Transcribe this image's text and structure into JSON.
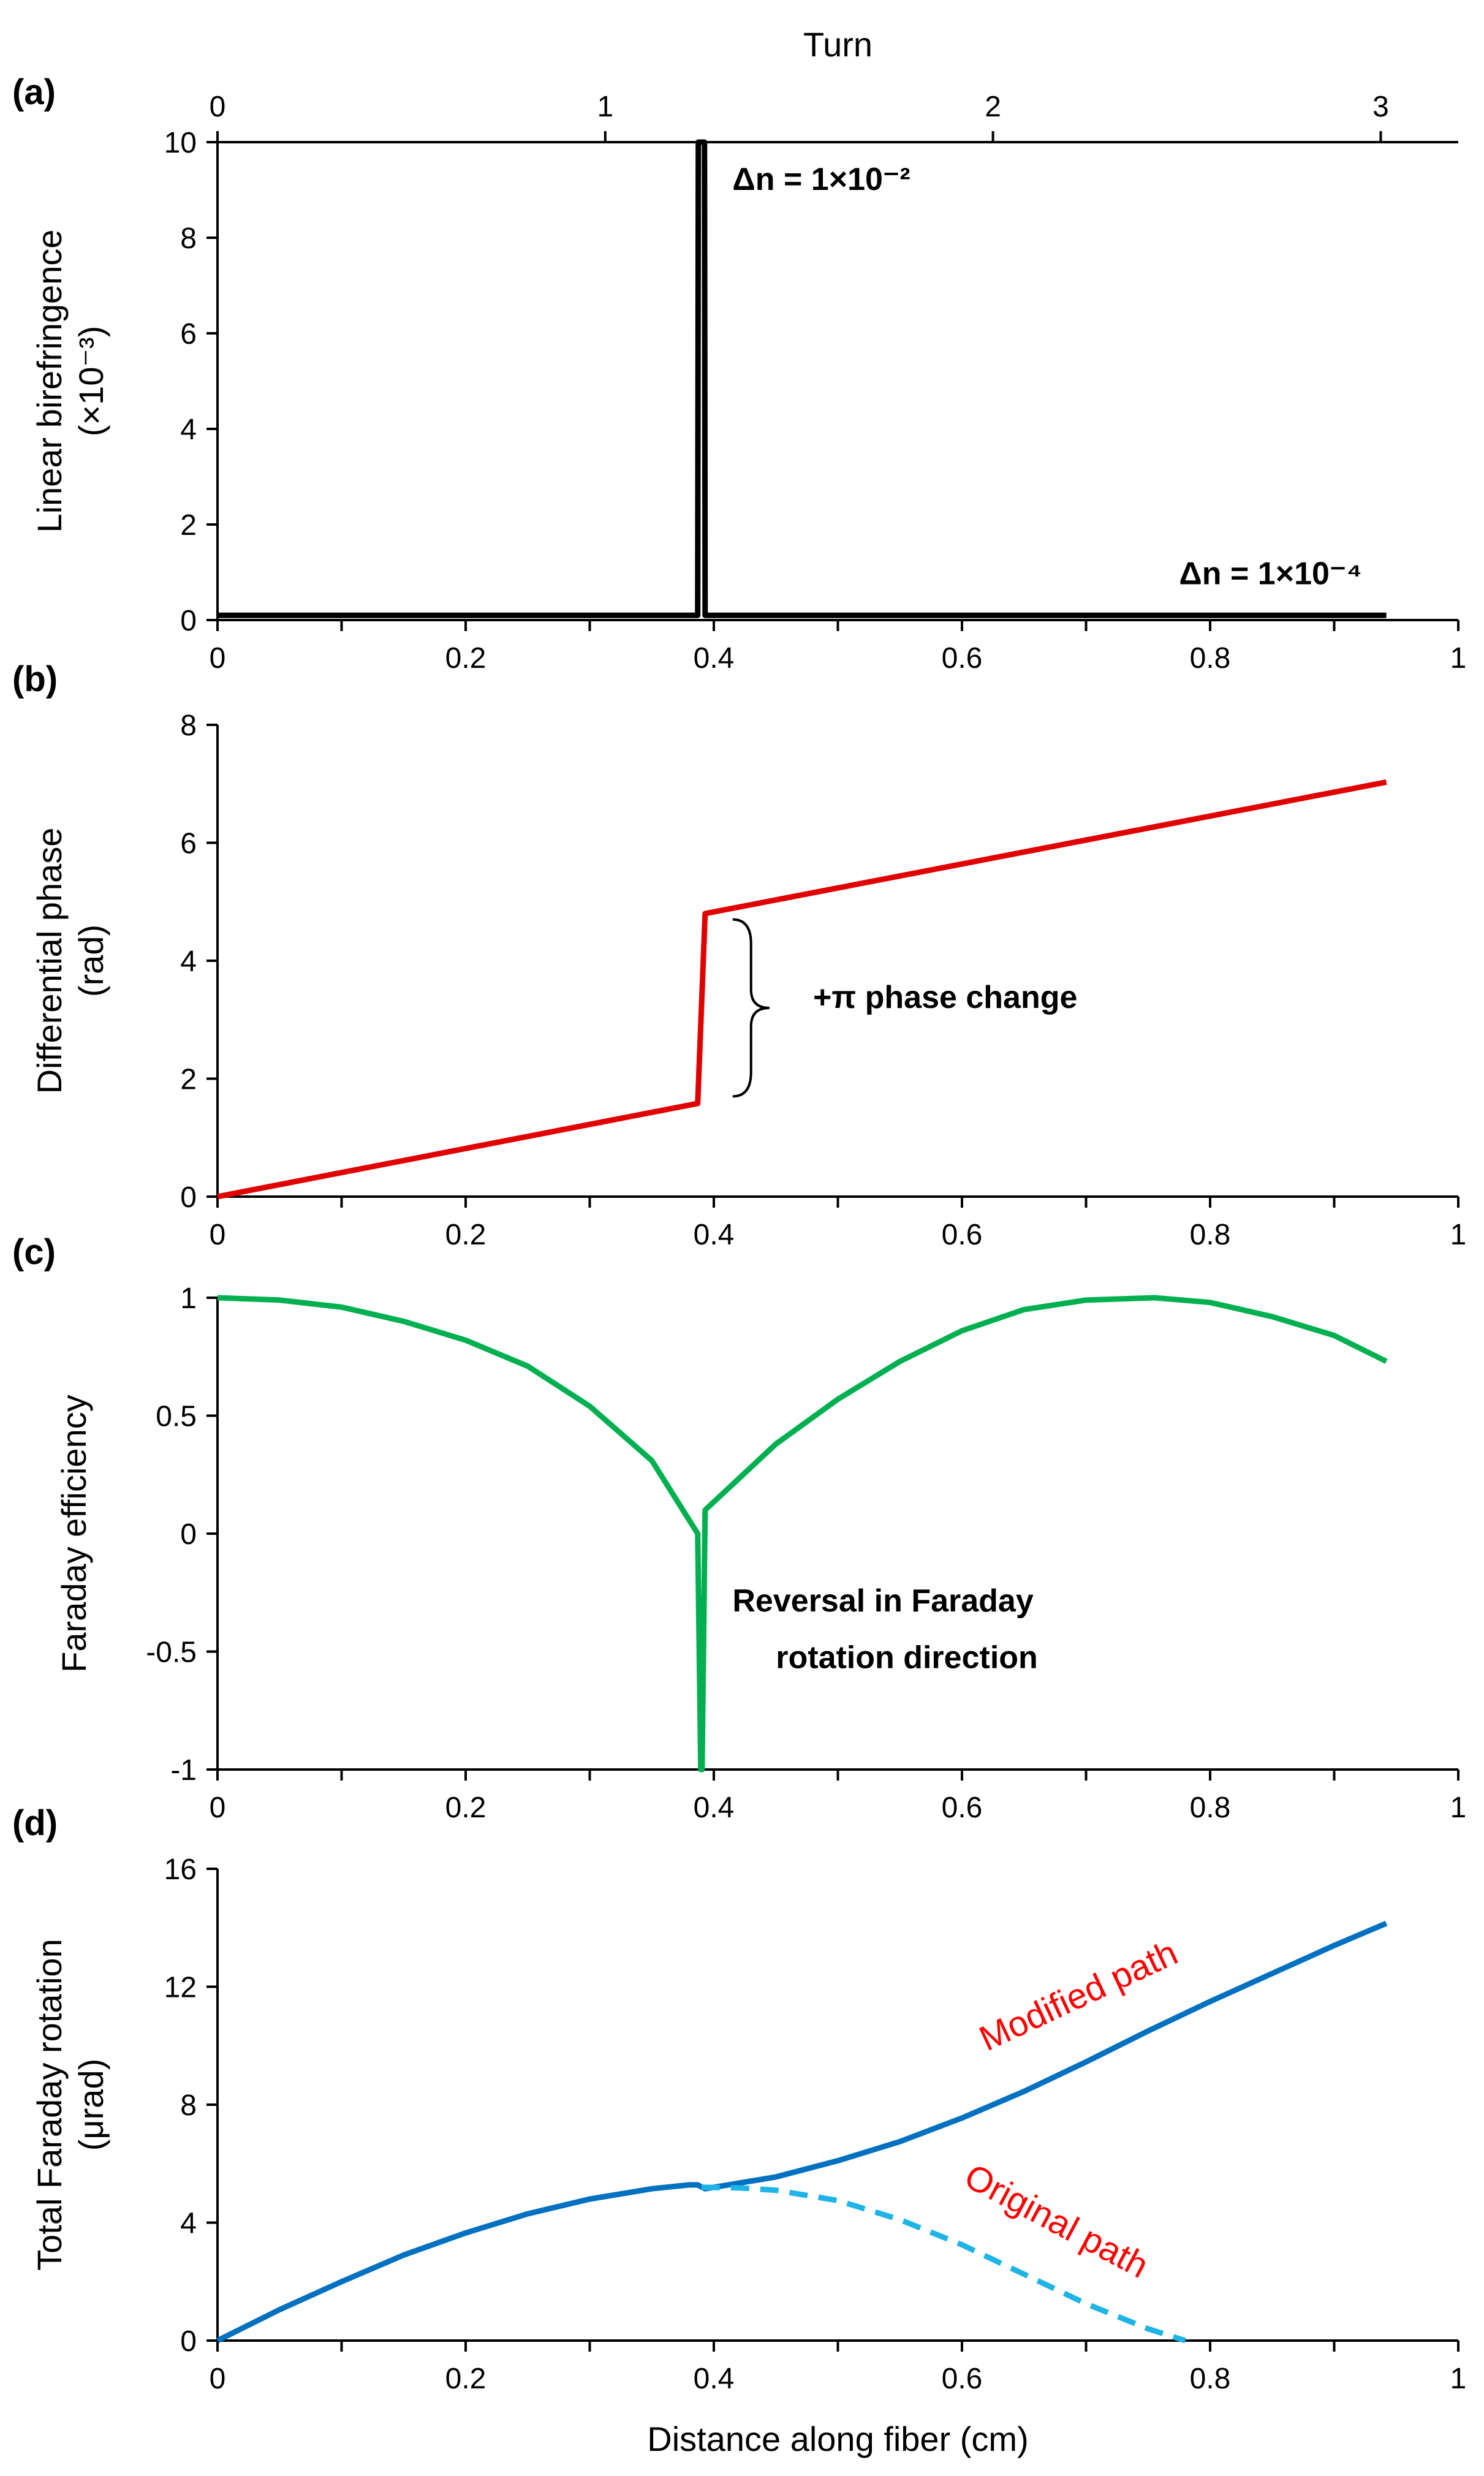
{
  "colors": {
    "black": "#000000",
    "red": "#e00000",
    "green": "#00b050",
    "blue": "#0070c0",
    "lightblue": "#1eb4e6",
    "annot_red": "#ff0000"
  },
  "chart_data": [
    {
      "id": "a",
      "panel_label": "(a)",
      "type": "line",
      "xlim": [
        0,
        1
      ],
      "ylim": [
        0,
        10
      ],
      "xticks": [
        0,
        0.2,
        0.4,
        0.6,
        0.8,
        1
      ],
      "xtick_labels": [
        "0",
        "0.2",
        "0.4",
        "0.6",
        "0.8",
        "1"
      ],
      "yticks": [
        0,
        2,
        4,
        6,
        8,
        10
      ],
      "ytick_labels": [
        "0",
        "2",
        "4",
        "6",
        "8",
        "10"
      ],
      "ylabel_lines": [
        "Linear birefringence",
        "(×10⁻³)"
      ],
      "top_axis": {
        "title": "Turn",
        "max_turn": 3.2,
        "ticks": [
          0,
          1,
          2,
          3
        ],
        "tick_labels": [
          "0",
          "1",
          "2",
          "3"
        ]
      },
      "series": [
        {
          "name": "birefringence",
          "color": "#000000",
          "style": "solid",
          "x": [
            0,
            0.387,
            0.3875,
            0.3925,
            0.393,
            0.942
          ],
          "y": [
            0.1,
            0.1,
            10,
            10,
            0.1,
            0.1
          ]
        }
      ],
      "annotations": [
        {
          "text": "Δn = 1×10⁻²",
          "x": 0.415,
          "y": 9.0
        },
        {
          "text": "Δn = 1×10⁻⁴",
          "x": 0.775,
          "y": 0.75
        }
      ]
    },
    {
      "id": "b",
      "panel_label": "(b)",
      "type": "line",
      "xlim": [
        0,
        1
      ],
      "ylim": [
        0,
        8
      ],
      "xticks": [
        0,
        0.2,
        0.4,
        0.6,
        0.8,
        1
      ],
      "xtick_labels": [
        "0",
        "0.2",
        "0.4",
        "0.6",
        "0.8",
        "1"
      ],
      "yticks": [
        0,
        2,
        4,
        6,
        8
      ],
      "ytick_labels": [
        "0",
        "2",
        "4",
        "6",
        "8"
      ],
      "ylabel_lines": [
        "Differential phase",
        "(rad)"
      ],
      "series": [
        {
          "name": "differential phase",
          "color": "#e00000",
          "style": "solid",
          "x": [
            0,
            0.387,
            0.393,
            0.942
          ],
          "y": [
            0,
            1.58,
            4.8,
            7.03
          ]
        }
      ],
      "annotations": [
        {
          "text": "+π phase change",
          "x": 0.48,
          "y": 3.2
        }
      ],
      "brace": {
        "x": 0.43,
        "y_top": 4.7,
        "y_bottom": 1.7
      }
    },
    {
      "id": "c",
      "panel_label": "(c)",
      "type": "line",
      "xlim": [
        0,
        1
      ],
      "ylim": [
        -1,
        1
      ],
      "xticks": [
        0,
        0.2,
        0.4,
        0.6,
        0.8,
        1
      ],
      "xtick_labels": [
        "0",
        "0.2",
        "0.4",
        "0.6",
        "0.8",
        "1"
      ],
      "yticks": [
        -1,
        -0.5,
        0,
        0.5,
        1
      ],
      "ytick_labels": [
        "-1",
        "-0.5",
        "0",
        "0.5",
        "1"
      ],
      "ylabel_lines": [
        "Faraday efficiency"
      ],
      "series": [
        {
          "name": "faraday efficiency",
          "color": "#00b050",
          "style": "solid",
          "x": [
            0,
            0.05,
            0.1,
            0.15,
            0.2,
            0.25,
            0.3,
            0.35,
            0.387,
            0.3895,
            0.3905,
            0.393,
            0.45,
            0.5,
            0.55,
            0.6,
            0.65,
            0.7,
            0.755,
            0.8,
            0.85,
            0.9,
            0.942
          ],
          "y": [
            1,
            0.99,
            0.96,
            0.9,
            0.82,
            0.71,
            0.54,
            0.31,
            0.0,
            -1.0,
            -1.0,
            0.1,
            0.38,
            0.57,
            0.73,
            0.86,
            0.95,
            0.99,
            1.0,
            0.98,
            0.92,
            0.84,
            0.73
          ]
        }
      ],
      "annotations": [
        {
          "text": "Reversal in Faraday",
          "x": 0.415,
          "y": -0.33
        },
        {
          "text": "rotation direction",
          "x": 0.45,
          "y": -0.57
        }
      ]
    },
    {
      "id": "d",
      "panel_label": "(d)",
      "type": "line",
      "xlim": [
        0,
        1
      ],
      "ylim": [
        0,
        16
      ],
      "xticks": [
        0,
        0.2,
        0.4,
        0.6,
        0.8,
        1
      ],
      "xtick_labels": [
        "0",
        "0.2",
        "0.4",
        "0.6",
        "0.8",
        "1"
      ],
      "yticks": [
        0,
        4,
        8,
        12,
        16
      ],
      "ytick_labels": [
        "0",
        "4",
        "8",
        "12",
        "16"
      ],
      "ylabel_lines": [
        "Total Faraday rotation",
        "(μrad)"
      ],
      "xlabel": "Distance along fiber    (cm)",
      "series": [
        {
          "name": "Modified path",
          "color": "#0070c0",
          "style": "solid",
          "x": [
            0,
            0.05,
            0.1,
            0.15,
            0.2,
            0.25,
            0.3,
            0.35,
            0.38,
            0.387,
            0.393,
            0.45,
            0.5,
            0.55,
            0.6,
            0.65,
            0.7,
            0.75,
            0.8,
            0.85,
            0.9,
            0.942
          ],
          "y": [
            0,
            1.05,
            2.0,
            2.9,
            3.65,
            4.3,
            4.8,
            5.15,
            5.28,
            5.28,
            5.15,
            5.55,
            6.1,
            6.75,
            7.55,
            8.45,
            9.45,
            10.5,
            11.5,
            12.45,
            13.4,
            14.15
          ]
        },
        {
          "name": "Original path",
          "color": "#1eb4e6",
          "style": "dashed",
          "x": [
            0.39,
            0.42,
            0.45,
            0.5,
            0.55,
            0.6,
            0.65,
            0.7,
            0.75,
            0.78
          ],
          "y": [
            5.2,
            5.18,
            5.1,
            4.75,
            4.1,
            3.25,
            2.25,
            1.25,
            0.4,
            0.0
          ]
        }
      ],
      "annotations": [
        {
          "text": "Modified path",
          "x": 0.62,
          "y": 9.8,
          "rotate": -25
        },
        {
          "text": "Original path",
          "x": 0.6,
          "y": 5.3,
          "rotate": 28
        }
      ]
    }
  ]
}
